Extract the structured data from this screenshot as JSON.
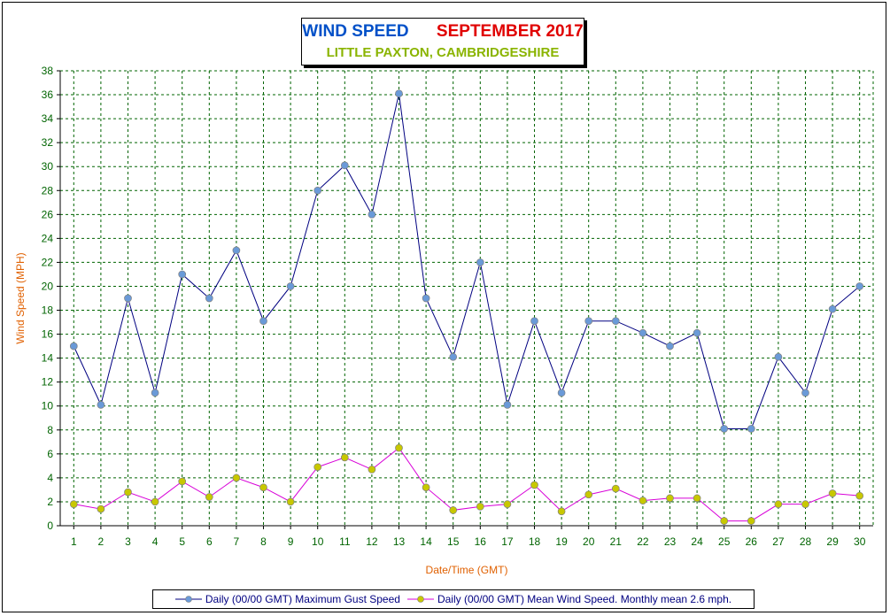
{
  "title": {
    "name": "WIND SPEED",
    "month": "SEPTEMBER 2017",
    "location": "LITTLE PAXTON, CAMBRIDGESHIRE"
  },
  "colors": {
    "gust_line": "#000080",
    "gust_marker": "#6a9ad8",
    "mean_line": "#d800d8",
    "mean_marker": "#c8c800",
    "grid": "#006400",
    "tick_text": "#006400",
    "axis_label": "#e06000"
  },
  "chart_data": {
    "type": "line",
    "xlabel": "Date/Time (GMT)",
    "ylabel": "Wind Speed (MPH)",
    "ylim": [
      0,
      38
    ],
    "yticks": [
      0,
      2,
      4,
      6,
      8,
      10,
      12,
      14,
      16,
      18,
      20,
      22,
      24,
      26,
      28,
      30,
      32,
      34,
      36,
      38
    ],
    "categories": [
      "1",
      "2",
      "3",
      "4",
      "5",
      "6",
      "7",
      "8",
      "9",
      "10",
      "11",
      "12",
      "13",
      "14",
      "15",
      "16",
      "17",
      "18",
      "19",
      "20",
      "21",
      "22",
      "23",
      "24",
      "25",
      "26",
      "27",
      "28",
      "29",
      "30"
    ],
    "grid": true,
    "legend_position": "bottom",
    "series": [
      {
        "name": "Daily (00/00 GMT) Maximum Gust Speed",
        "values": [
          15,
          10.1,
          19,
          11.1,
          21,
          19,
          23,
          17.1,
          20,
          28,
          30.1,
          26,
          36.1,
          19,
          14.1,
          22,
          10.1,
          17.1,
          11.1,
          17.1,
          17.1,
          16.1,
          15,
          16.1,
          8.1,
          8.1,
          14.1,
          11.1,
          18.1,
          20
        ]
      },
      {
        "name": "Daily (00/00 GMT) Mean Wind Speed. Monthly mean 2.6 mph.",
        "values": [
          1.8,
          1.4,
          2.8,
          2.0,
          3.7,
          2.4,
          4.0,
          3.2,
          2.0,
          4.9,
          5.7,
          4.7,
          6.5,
          3.2,
          1.3,
          1.6,
          1.8,
          3.4,
          1.2,
          2.6,
          3.1,
          2.1,
          2.3,
          2.3,
          0.4,
          0.4,
          1.8,
          1.8,
          2.7,
          2.5
        ]
      }
    ]
  }
}
